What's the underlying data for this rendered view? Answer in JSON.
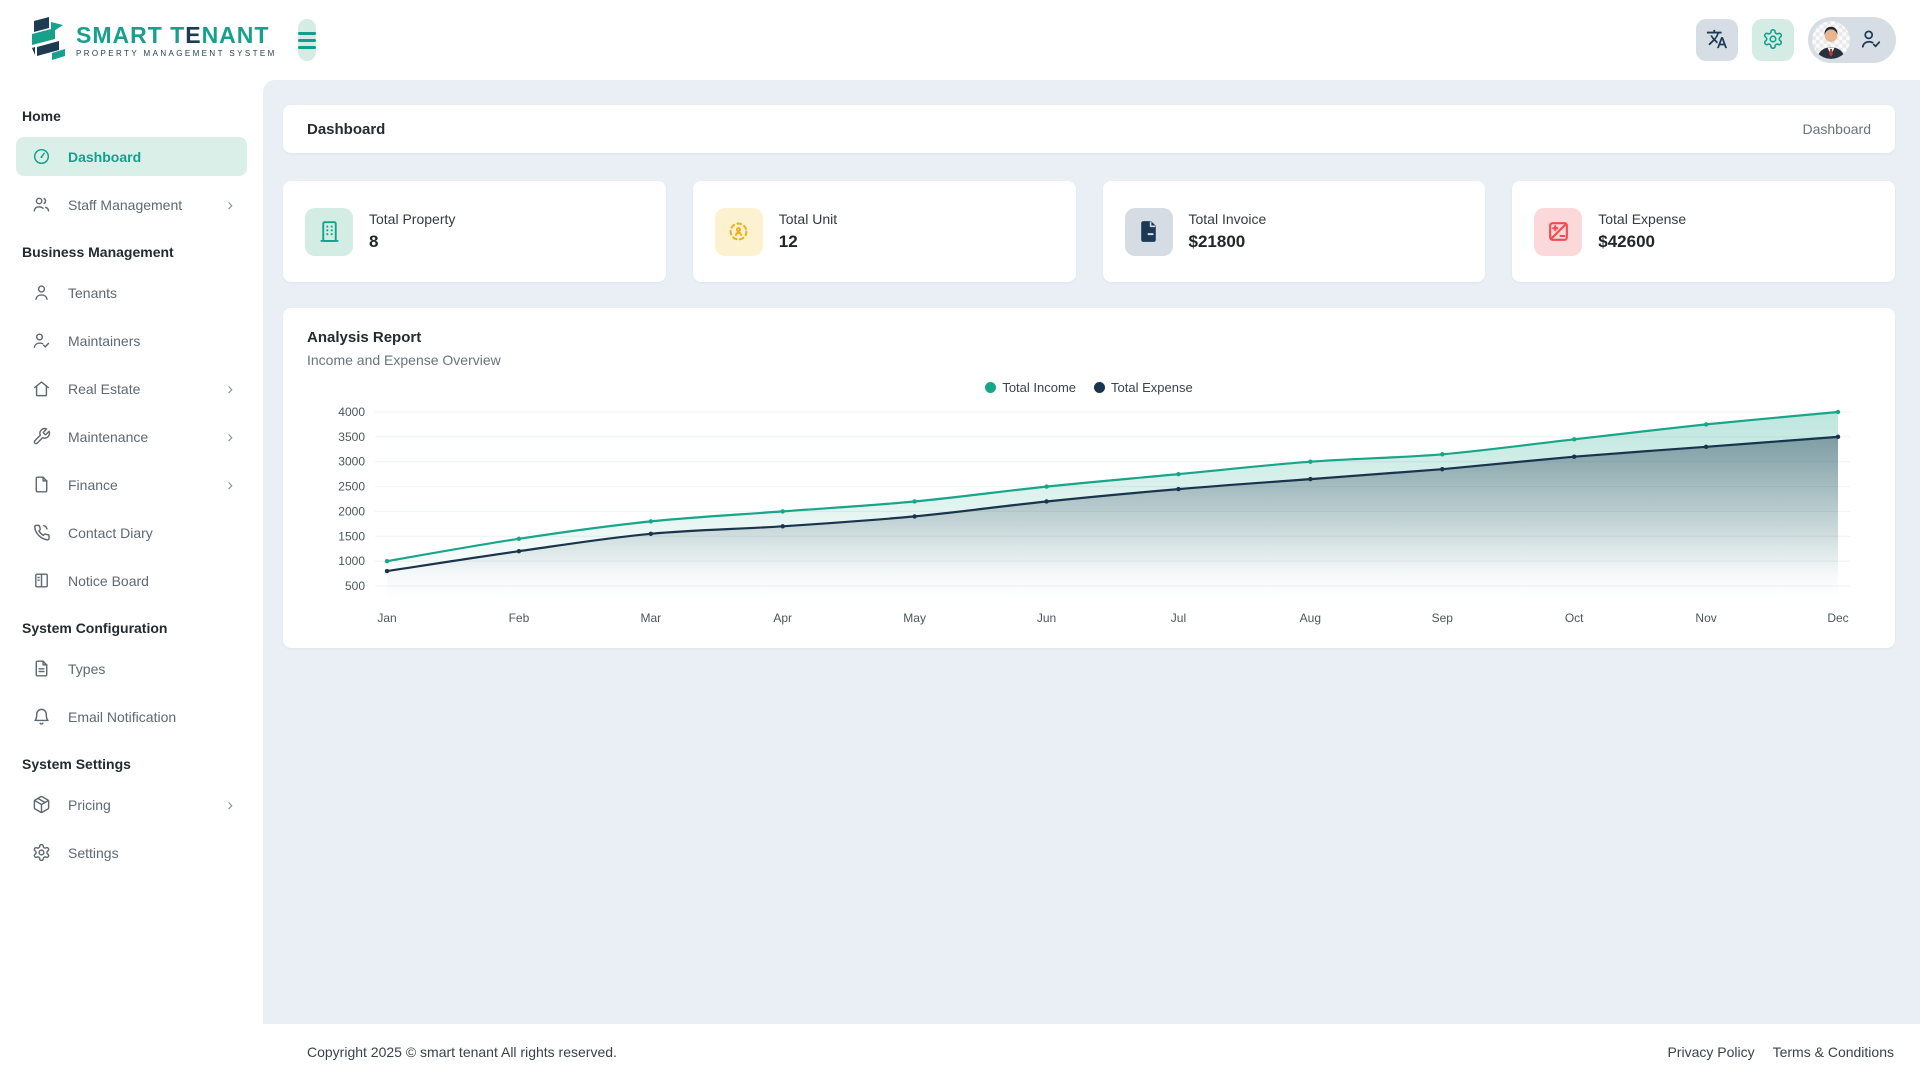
{
  "brand": {
    "title_part1": "SMART T",
    "title_accent": "E",
    "title_part2": "NANT",
    "tagline": "PROPERTY MANAGEMENT SYSTEM"
  },
  "palette": {
    "teal": "#17a689",
    "navy": "#19344d",
    "panel": "#e9eff5",
    "active_bg": "#d9efe8"
  },
  "sidebar": {
    "sections": [
      {
        "title": "Home",
        "items": [
          {
            "label": "Dashboard",
            "icon": "dashboard",
            "active": true,
            "chevron": false
          },
          {
            "label": "Staff Management",
            "icon": "users",
            "active": false,
            "chevron": true
          }
        ]
      },
      {
        "title": "Business Management",
        "items": [
          {
            "label": "Tenants",
            "icon": "user",
            "active": false,
            "chevron": false
          },
          {
            "label": "Maintainers",
            "icon": "user-check",
            "active": false,
            "chevron": false
          },
          {
            "label": "Real Estate",
            "icon": "home",
            "active": false,
            "chevron": true
          },
          {
            "label": "Maintenance",
            "icon": "wrench",
            "active": false,
            "chevron": true
          },
          {
            "label": "Finance",
            "icon": "file",
            "active": false,
            "chevron": true
          },
          {
            "label": "Contact Diary",
            "icon": "phone",
            "active": false,
            "chevron": false
          },
          {
            "label": "Notice Board",
            "icon": "board",
            "active": false,
            "chevron": false
          }
        ]
      },
      {
        "title": "System Configuration",
        "items": [
          {
            "label": "Types",
            "icon": "file-text",
            "active": false,
            "chevron": false
          },
          {
            "label": "Email Notification",
            "icon": "bell",
            "active": false,
            "chevron": false
          }
        ]
      },
      {
        "title": "System Settings",
        "items": [
          {
            "label": "Pricing",
            "icon": "package",
            "active": false,
            "chevron": true
          },
          {
            "label": "Settings",
            "icon": "gear",
            "active": false,
            "chevron": false
          }
        ]
      }
    ]
  },
  "breadcrumb": {
    "title": "Dashboard",
    "current": "Dashboard"
  },
  "stats": [
    {
      "label": "Total Property",
      "value": "8",
      "icon": "building",
      "fg": "#12a38b",
      "bg": "#d3ece4"
    },
    {
      "label": "Total Unit",
      "value": "12",
      "icon": "units",
      "fg": "#eab226",
      "bg": "#fdf2cf"
    },
    {
      "label": "Total Invoice",
      "value": "$21800",
      "icon": "invoice",
      "fg": "#1d3a55",
      "bg": "#d6dce3"
    },
    {
      "label": "Total Expense",
      "value": "$42600",
      "icon": "expense",
      "fg": "#f4494f",
      "bg": "#fbd9da"
    }
  ],
  "chart_data": {
    "type": "area",
    "title": "Analysis Report",
    "subtitle": "Income and Expense Overview",
    "x": [
      "Jan",
      "Feb",
      "Mar",
      "Apr",
      "May",
      "Jun",
      "Jul",
      "Aug",
      "Sep",
      "Oct",
      "Nov",
      "Dec"
    ],
    "series": [
      {
        "name": "Total Income",
        "color": "#17a689",
        "values": [
          1000,
          1450,
          1800,
          2000,
          2200,
          2500,
          2750,
          3000,
          3150,
          3450,
          3750,
          4000
        ]
      },
      {
        "name": "Total Expense",
        "color": "#19344d",
        "values": [
          800,
          1200,
          1550,
          1700,
          1900,
          2200,
          2450,
          2650,
          2850,
          3100,
          3300,
          3500
        ]
      }
    ],
    "ylim": [
      500,
      4000
    ],
    "yticks": [
      500,
      1000,
      1500,
      2000,
      2500,
      3000,
      3500,
      4000
    ],
    "grid": false,
    "legend_position": "top"
  },
  "footer": {
    "copyright": "Copyright 2025 © smart tenant All rights reserved.",
    "links": [
      "Privacy Policy",
      "Terms & Conditions"
    ]
  }
}
